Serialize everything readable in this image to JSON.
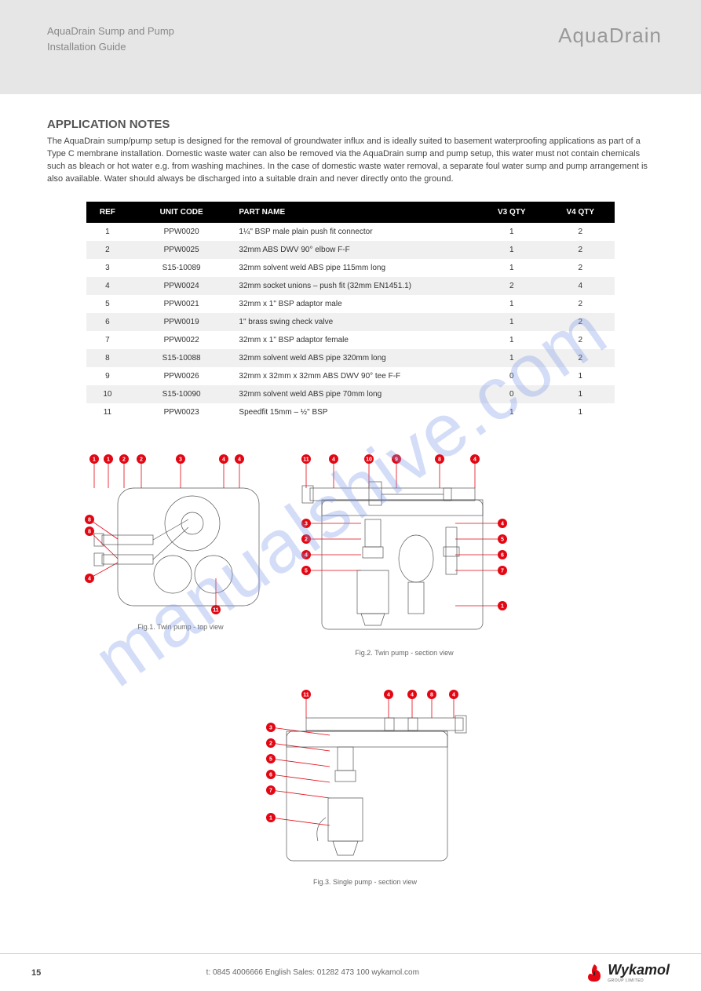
{
  "header": {
    "line1": "AquaDrain Sump and Pump",
    "line2": "Installation Guide",
    "title": "AquaDrain"
  },
  "notes": {
    "title": "APPLICATION NOTES",
    "body": "The AquaDrain sump/pump setup is designed for the removal of groundwater influx and is ideally suited to basement waterproofing applications as part of a Type C membrane installation. Domestic waste water can also be removed via the AquaDrain sump and pump setup, this water must not contain chemicals such as bleach or hot water e.g. from washing machines. In the case of domestic waste water removal, a separate foul water sump and pump arrangement is also available. Water should always be discharged into a suitable drain and never directly onto the ground."
  },
  "table": {
    "headers": [
      "REF",
      "UNIT CODE",
      "PART NAME",
      "V3 QTY",
      "V4 QTY"
    ],
    "rows": [
      [
        "1",
        "PPW0020",
        "1¼\" BSP male plain push fit connector",
        "1",
        "2"
      ],
      [
        "2",
        "PPW0025",
        "32mm ABS DWV 90° elbow F-F",
        "1",
        "2"
      ],
      [
        "3",
        "S15-10089",
        "32mm solvent weld ABS pipe 115mm long",
        "1",
        "2"
      ],
      [
        "4",
        "PPW0024",
        "32mm socket unions – push fit (32mm EN1451.1)",
        "2",
        "4"
      ],
      [
        "5",
        "PPW0021",
        "32mm x 1\" BSP adaptor male",
        "1",
        "2"
      ],
      [
        "6",
        "PPW0019",
        "1\" brass swing check valve",
        "1",
        "2"
      ],
      [
        "7",
        "PPW0022",
        "32mm x 1\" BSP adaptor female",
        "1",
        "2"
      ],
      [
        "8",
        "S15-10088",
        "32mm solvent weld ABS pipe 320mm long",
        "1",
        "2"
      ],
      [
        "9",
        "PPW0026",
        "32mm x 32mm x 32mm ABS DWV 90° tee F-F",
        "0",
        "1"
      ],
      [
        "10",
        "S15-10090",
        "32mm solvent weld ABS pipe 70mm long",
        "0",
        "1"
      ],
      [
        "11",
        "PPW0023",
        "Speedfit 15mm – ½\" BSP",
        "1",
        "1"
      ]
    ]
  },
  "diagrams": {
    "fig1": {
      "caption": "Fig.1. Twin pump - top view",
      "dots": [
        "1",
        "1",
        "2",
        "2",
        "3",
        "4",
        "4"
      ],
      "side_dots": [
        "8",
        "8",
        "4",
        "11"
      ]
    },
    "fig2": {
      "caption": "Fig.2. Twin pump - section view",
      "top_dots": [
        "11",
        "4",
        "10",
        "9",
        "8",
        "4"
      ],
      "left_dots": [
        "3",
        "2",
        "4",
        "5"
      ],
      "right_dots": [
        "4",
        "5",
        "6",
        "7",
        "1"
      ]
    },
    "fig3": {
      "caption": "Fig.3. Single pump - section view",
      "top_dots": [
        "11",
        "4",
        "4",
        "8",
        "4"
      ],
      "left_dots": [
        "3",
        "2",
        "5",
        "6",
        "7",
        "1"
      ]
    }
  },
  "watermark": "manualshive.com",
  "footer": {
    "page": "15",
    "contact": "t: 0845 4006666   English   Sales: 01282 473 100   wykamol.com",
    "logo": "Wykamol",
    "logo_sub": "GROUP LIMITED"
  },
  "colors": {
    "accent": "#e30613",
    "header_bg": "#e6e6e6",
    "row_alt": "#f0f0f0"
  }
}
